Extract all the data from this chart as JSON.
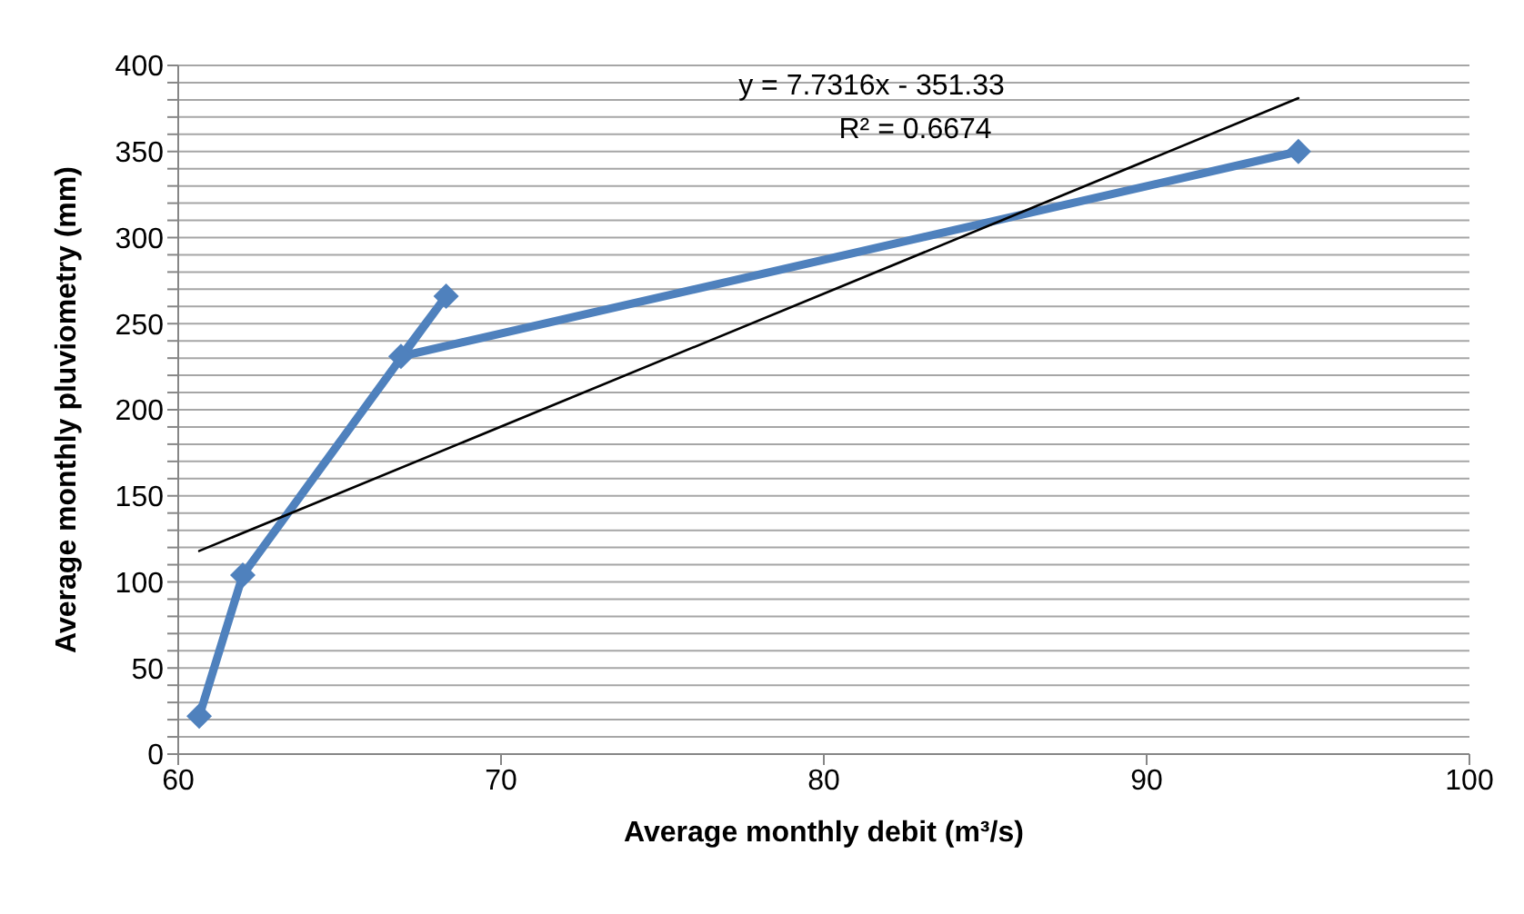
{
  "chart_data": {
    "type": "line",
    "xlabel": "Average monthly debit (m³/s)",
    "ylabel": "Average monthly pluviometry (mm)",
    "xlim": [
      60,
      100
    ],
    "xticks": [
      60,
      70,
      80,
      90,
      100
    ],
    "ylim": [
      0,
      400
    ],
    "yticks": [
      0,
      {
        "value": 10,
        "label": null
      },
      {
        "value": 20,
        "label": null
      },
      {
        "value": 30,
        "label": null
      },
      {
        "value": 40,
        "label": null
      },
      50,
      {
        "value": 60,
        "label": null
      },
      {
        "value": 70,
        "label": null
      },
      {
        "value": 80,
        "label": null
      },
      {
        "value": 90,
        "label": null
      },
      100,
      {
        "value": 110,
        "label": null
      },
      {
        "value": 120,
        "label": null
      },
      {
        "value": 130,
        "label": null
      },
      {
        "value": 140,
        "label": null
      },
      150,
      {
        "value": 160,
        "label": null
      },
      {
        "value": 170,
        "label": null
      },
      {
        "value": 180,
        "label": null
      },
      {
        "value": 190,
        "label": null
      },
      200,
      {
        "value": 210,
        "label": null
      },
      {
        "value": 220,
        "label": null
      },
      {
        "value": 230,
        "label": null
      },
      {
        "value": 240,
        "label": null
      },
      250,
      {
        "value": 260,
        "label": null
      },
      {
        "value": 270,
        "label": null
      },
      {
        "value": 280,
        "label": null
      },
      {
        "value": 290,
        "label": null
      },
      300,
      {
        "value": 310,
        "label": null
      },
      {
        "value": 320,
        "label": null
      },
      {
        "value": 330,
        "label": null
      },
      {
        "value": 340,
        "label": null
      },
      350,
      {
        "value": 360,
        "label": null
      },
      {
        "value": 370,
        "label": null
      },
      {
        "value": 380,
        "label": null
      },
      {
        "value": 390,
        "label": null
      },
      400
    ],
    "grid": "y",
    "line_style": "solid",
    "annotations": [
      "y = 7.7316x - 351.33",
      "R² = 0.6674"
    ],
    "series": [
      {
        "color": "#4f81bd",
        "marker": "diamond",
        "x": [
          60.65,
          62,
          68.3,
          66.9,
          94.7
        ],
        "values": [
          22,
          104,
          266,
          231,
          350
        ]
      },
      {
        "color": "#000000",
        "marker": "none",
        "x": [
          60.65,
          94.7
        ],
        "values": [
          118,
          381
        ]
      }
    ]
  }
}
